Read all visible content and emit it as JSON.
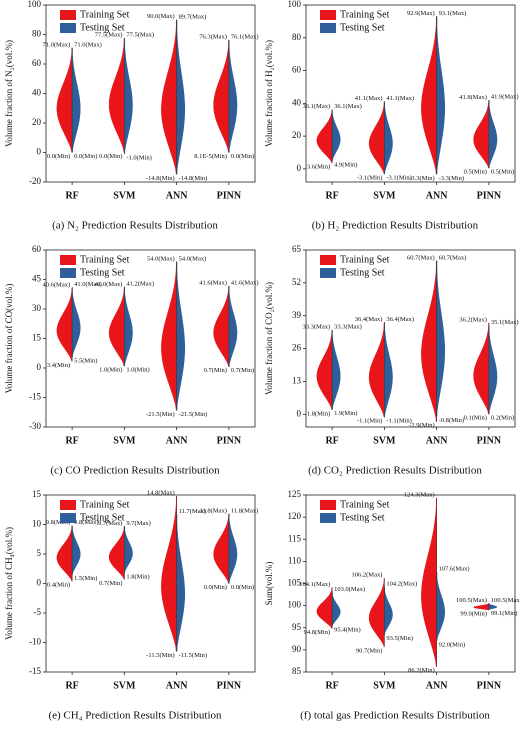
{
  "chart_data": [
    {
      "type": "violin",
      "caption": "(a)  N₂ Prediction Results Distribution",
      "ylabel": "Volume fraction of N₂(vol.%)",
      "categories": [
        "RF",
        "SVM",
        "ANN",
        "PINN"
      ],
      "ylim": [
        -20,
        100
      ],
      "yticks": [
        -20,
        0,
        20,
        40,
        60,
        80,
        100
      ],
      "series": [
        {
          "name": "Training Set",
          "color": "#e8161b",
          "max": {
            "values": [
              71.0,
              77.5,
              90.0,
              76.3
            ],
            "value_labels": [
              "71.0(Max)",
              "77.5(Max)",
              "90.0(Max)",
              "76.3(Max)"
            ]
          },
          "min": {
            "values": [
              0.0,
              0.0,
              -14.8,
              8.1e-05
            ],
            "value_labels": [
              "0.0(Min)",
              "0.0(Min)",
              "-14.8(Min)",
              "8.1E-5(Min)"
            ]
          }
        },
        {
          "name": "Testing Set",
          "color": "#2f5f9b",
          "max": {
            "values": [
              71.0,
              77.5,
              89.7,
              76.1
            ],
            "value_labels": [
              "71.0(Max)",
              "77.5(Max)",
              "89.7(Max)",
              "76.1(Max)"
            ]
          },
          "min": {
            "values": [
              0.0,
              -1.0,
              -14.8,
              0.0
            ],
            "value_labels": [
              "0.0(Min)",
              "-1.0(Min)",
              "-14.8(Min)",
              "0.0(Min)"
            ]
          }
        }
      ]
    },
    {
      "type": "violin",
      "caption": "(b)  H₂ Prediction Results Distribution",
      "ylabel": "Volume fraction of H₂(vol.%)",
      "categories": [
        "RF",
        "SVM",
        "ANN",
        "PINN"
      ],
      "ylim": [
        -8,
        100
      ],
      "yticks": [
        0,
        20,
        40,
        60,
        80,
        100
      ],
      "series": [
        {
          "name": "Training Set",
          "color": "#e8161b",
          "max": {
            "values": [
              36.1,
              41.1,
              92.9,
              41.8
            ],
            "value_labels": [
              "36.1(Max)",
              "41.1(Max)",
              "92.9(Max)",
              "41.8(Max)"
            ]
          },
          "min": {
            "values": [
              3.6,
              -3.1,
              -3.3,
              0.5
            ],
            "value_labels": [
              "3.6(Min)",
              "-3.1(Min)",
              "-3.3(Min)",
              "0.5(Min)"
            ]
          }
        },
        {
          "name": "Testing Set",
          "color": "#2f5f9b",
          "max": {
            "values": [
              36.1,
              41.1,
              93.1,
              41.9
            ],
            "value_labels": [
              "36.1(Max)",
              "41.1(Max)",
              "93.1(Max)",
              "41.9(Max)"
            ]
          },
          "min": {
            "values": [
              4.9,
              -3.1,
              -3.3,
              0.5
            ],
            "value_labels": [
              "4.9(Min)",
              "-3.1(Min)",
              "-3.3(Min)",
              "0.5(Min)"
            ]
          }
        }
      ]
    },
    {
      "type": "violin",
      "caption": "(c)  CO Prediction Results Distribution",
      "ylabel": "Volume fraction of CO(vol.%)",
      "categories": [
        "RF",
        "SVM",
        "ANN",
        "PINN"
      ],
      "ylim": [
        -30,
        60
      ],
      "yticks": [
        -30,
        -15,
        0,
        15,
        30,
        45,
        60
      ],
      "series": [
        {
          "name": "Training Set",
          "color": "#e8161b",
          "max": {
            "values": [
              40.6,
              41.0,
              54.0,
              41.6
            ],
            "value_labels": [
              "40.6(Max)",
              "41.0(Max)",
              "54.0(Max)",
              "41.6(Max)"
            ]
          },
          "min": {
            "values": [
              3.4,
              1.0,
              -21.5,
              0.7
            ],
            "value_labels": [
              "3.4(Min)",
              "1.0(Min)",
              "-21.5(Min)",
              "0.7(Min)"
            ]
          }
        },
        {
          "name": "Testing Set",
          "color": "#2f5f9b",
          "max": {
            "values": [
              41.0,
              41.2,
              54.0,
              41.6
            ],
            "value_labels": [
              "41.0(Max)",
              "41.2(Max)",
              "54.0(Max)",
              "41.6(Max)"
            ]
          },
          "min": {
            "values": [
              5.5,
              1.0,
              -21.5,
              0.7
            ],
            "value_labels": [
              "5.5(Min)",
              "1.0(Min)",
              "-21.5(Min)",
              "0.7(Min)"
            ]
          }
        }
      ]
    },
    {
      "type": "violin",
      "caption": "(d)  CO₂ Prediction Results Distribution",
      "ylabel": "Volume fraction of CO₂(vol.%)",
      "categories": [
        "RF",
        "SVM",
        "ANN",
        "PINN"
      ],
      "ylim": [
        -5,
        65
      ],
      "yticks": [
        0,
        13,
        26,
        39,
        52,
        65
      ],
      "series": [
        {
          "name": "Training Set",
          "color": "#e8161b",
          "max": {
            "values": [
              33.3,
              36.4,
              60.7,
              36.2
            ],
            "value_labels": [
              "33.3(Max)",
              "36.4(Max)",
              "60.7(Max)",
              "36.2(Max)"
            ]
          },
          "min": {
            "values": [
              1.8,
              -1.1,
              -2.9,
              0.1
            ],
            "value_labels": [
              "1.8(Min)",
              "-1.1(Min)",
              "-2.9(Min)",
              "0.1(Min)"
            ]
          }
        },
        {
          "name": "Testing Set",
          "color": "#2f5f9b",
          "max": {
            "values": [
              33.3,
              36.4,
              60.7,
              35.1
            ],
            "value_labels": [
              "33.3(Max)",
              "36.4(Max)",
              "60.7(Max)",
              "35.1(Max)"
            ]
          },
          "min": {
            "values": [
              1.9,
              -1.1,
              -0.8,
              0.2
            ],
            "value_labels": [
              "1.9(Min)",
              "-1.1(Min)",
              "-0.8(Min)",
              "0.2(Min)"
            ]
          }
        }
      ]
    },
    {
      "type": "violin",
      "caption": "(e)  CH₄ Prediction Results Distribution",
      "ylabel": "Volume fraction of CH₄(vol.%)",
      "categories": [
        "RF",
        "SVM",
        "ANN",
        "PINN"
      ],
      "ylim": [
        -15,
        15
      ],
      "yticks": [
        -15,
        -10,
        -5,
        0,
        5,
        10,
        15
      ],
      "series": [
        {
          "name": "Training Set",
          "color": "#e8161b",
          "max": {
            "values": [
              9.8,
              9.7,
              14.8,
              11.8
            ],
            "value_labels": [
              "9.8(Max)",
              "9.7(Max)",
              "14.8(Max)",
              "11.8(Max)"
            ]
          },
          "min": {
            "values": [
              0.4,
              0.7,
              -11.5,
              0.0
            ],
            "value_labels": [
              "0.4(Min)",
              "0.7(Min)",
              "-11.5(Min)",
              "0.0(Min)"
            ]
          }
        },
        {
          "name": "Testing Set",
          "color": "#2f5f9b",
          "max": {
            "values": [
              9.8,
              9.7,
              11.7,
              11.8
            ],
            "value_labels": [
              "9.8(Max)",
              "9.7(Max)",
              "11.7(Max)",
              "11.8(Max)"
            ]
          },
          "min": {
            "values": [
              1.5,
              1.8,
              -11.5,
              0.0
            ],
            "value_labels": [
              "1.5(Min)",
              "1.8(Min)",
              "-11.5(Min)",
              "0.0(Min)"
            ]
          }
        }
      ]
    },
    {
      "type": "violin",
      "caption": "(f)  total gas Prediction Results Distribution",
      "ylabel": "Sum(vol.%)",
      "categories": [
        "RF",
        "SVM",
        "ANN",
        "PINN"
      ],
      "ylim": [
        85,
        125
      ],
      "yticks": [
        85,
        90,
        95,
        100,
        105,
        110,
        115,
        120,
        125
      ],
      "series": [
        {
          "name": "Training Set",
          "color": "#e8161b",
          "max": {
            "values": [
              104.1,
              106.2,
              124.3,
              100.5
            ],
            "value_labels": [
              "104.1(Max)",
              "106.2(Max)",
              "124.3(Max)",
              "100.5(Max)"
            ]
          },
          "min": {
            "values": [
              94.8,
              90.7,
              86.2,
              99.0
            ],
            "value_labels": [
              "94.8(Min)",
              "90.7(Min)",
              "86.2(Min)",
              "99.0(Min)"
            ]
          }
        },
        {
          "name": "Testing Set",
          "color": "#2f5f9b",
          "max": {
            "values": [
              103.0,
              104.2,
              107.6,
              100.5
            ],
            "value_labels": [
              "103.0(Max)",
              "104.2(Max)",
              "107.6(Max)",
              "100.5(Max)"
            ]
          },
          "min": {
            "values": [
              95.4,
              93.5,
              92.0,
              99.1
            ],
            "value_labels": [
              "95.4(Min)",
              "93.5(Min)",
              "92.0(Min)",
              "99.1(Min)"
            ]
          }
        }
      ]
    }
  ]
}
